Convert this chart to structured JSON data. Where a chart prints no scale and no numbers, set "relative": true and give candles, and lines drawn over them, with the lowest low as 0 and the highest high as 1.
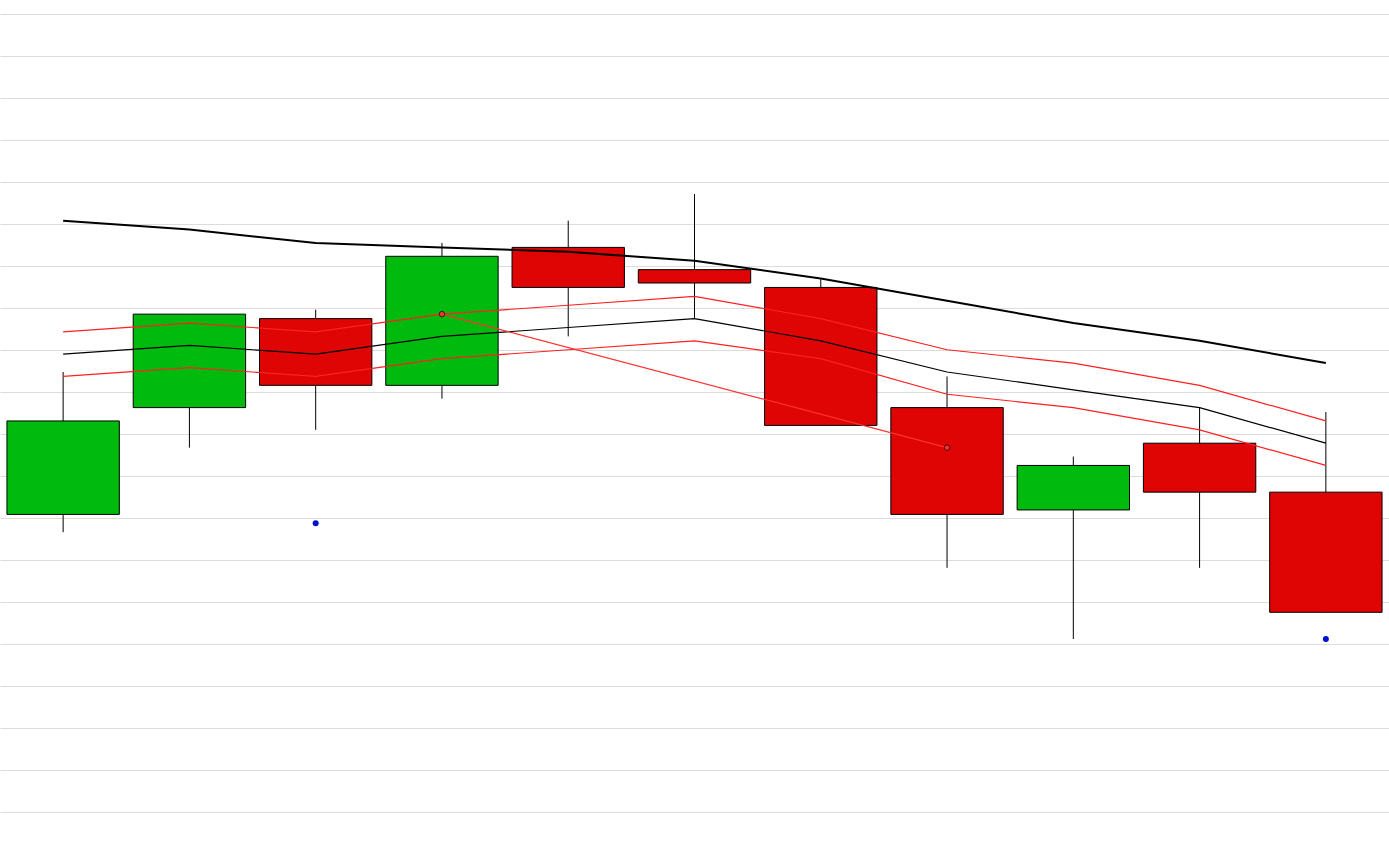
{
  "chart_data": {
    "type": "candlestick",
    "relative": true,
    "grid": true,
    "categories": [
      null,
      null,
      null,
      null,
      null,
      null,
      null,
      null,
      null,
      null,
      null
    ],
    "ohlc": [
      [
        0.28,
        0.6,
        0.24,
        0.49
      ],
      [
        0.52,
        0.73,
        0.43,
        0.73
      ],
      [
        0.72,
        0.74,
        0.47,
        0.57
      ],
      [
        0.57,
        0.89,
        0.54,
        0.86
      ],
      [
        0.88,
        0.94,
        0.68,
        0.79
      ],
      [
        0.83,
        1,
        0.72,
        0.8
      ],
      [
        0.79,
        0.81,
        0.48,
        0.48
      ],
      [
        0.52,
        0.59,
        0.16,
        0.28
      ],
      [
        0.29,
        0.41,
        0,
        0.39
      ],
      [
        0.44,
        0.52,
        0.16,
        0.33
      ],
      [
        0.33,
        0.51,
        0.06,
        0.06
      ]
    ],
    "colors": [
      "#00bb0e",
      "#00bb0e",
      "#df0505",
      "#00bb0e",
      "#df0505",
      "#df0505",
      "#df0505",
      "#df0505",
      "#00bb0e",
      "#df0505",
      "#df0505"
    ],
    "series": [
      {
        "type": "line",
        "color": "#000000",
        "values": [
          0.94,
          0.92,
          0.89,
          0.88,
          0.87,
          0.85,
          0.81,
          0.76,
          0.71,
          0.67,
          0.62
        ]
      },
      {
        "type": "line",
        "color": "#ff2020",
        "values": [
          0.69,
          0.71,
          0.69,
          0.73,
          0.75,
          0.77,
          0.72,
          0.65,
          0.62,
          0.57,
          0.49
        ]
      },
      {
        "type": "line",
        "color": "#000000",
        "values": [
          0.64,
          0.66,
          0.64,
          0.68,
          0.7,
          0.72,
          0.67,
          0.6,
          0.56,
          0.52,
          0.44
        ]
      },
      {
        "type": "line",
        "color": "#ff2020",
        "values": [
          0.59,
          0.61,
          0.59,
          0.63,
          0.65,
          0.67,
          0.63,
          0.55,
          0.52,
          0.47,
          0.39
        ]
      },
      {
        "type": "line",
        "color": "#ff3030",
        "marker": "circle",
        "values": [
          null,
          null,
          null,
          0.73,
          null,
          null,
          null,
          0.43,
          null,
          null,
          null
        ]
      },
      {
        "type": "scatter",
        "color": "#0010d0",
        "values": [
          null,
          null,
          0.26,
          null,
          null,
          null,
          null,
          null,
          null,
          null,
          0
        ]
      }
    ]
  }
}
